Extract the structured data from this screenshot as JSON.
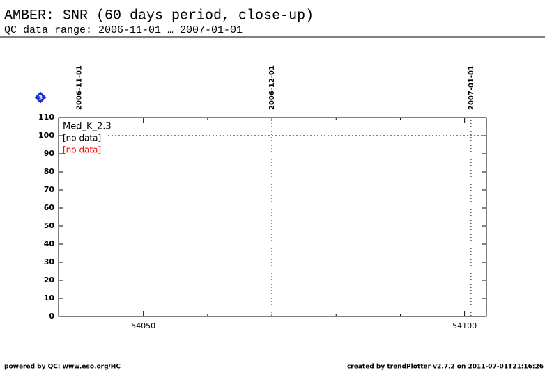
{
  "chart_data": {
    "type": "line",
    "title": "AMBER: SNR (60 days period, close-up)",
    "subtitle": "QC data range: 2006-11-01 … 2007-01-01",
    "badge": "3",
    "xlim": [
      54036.8,
      54103.4
    ],
    "xticks": [
      54050,
      54100
    ],
    "xminor_ticks": [
      54040,
      54060,
      54070,
      54080,
      54090
    ],
    "ylim": [
      0,
      110
    ],
    "yticks": [
      0,
      10,
      20,
      30,
      40,
      50,
      60,
      70,
      80,
      90,
      100,
      110
    ],
    "date_markers": [
      {
        "label": "2006-11-01",
        "value": 54040
      },
      {
        "label": "2006-12-01",
        "value": 54070
      },
      {
        "label": "2007-01-01",
        "value": 54101
      }
    ],
    "reference_line": 100,
    "series": [
      {
        "name": "Med_K_2.3",
        "color": "#000000",
        "values": []
      },
      {
        "name": "[no data]",
        "color": "#000000",
        "values": []
      },
      {
        "name": "[no data]",
        "color": "#ff0000",
        "values": []
      }
    ],
    "footer_left": "powered by QC: www.eso.org/HC",
    "footer_right": "created by trendPlotter v2.7.2 on 2011-07-01T21:16:26"
  }
}
